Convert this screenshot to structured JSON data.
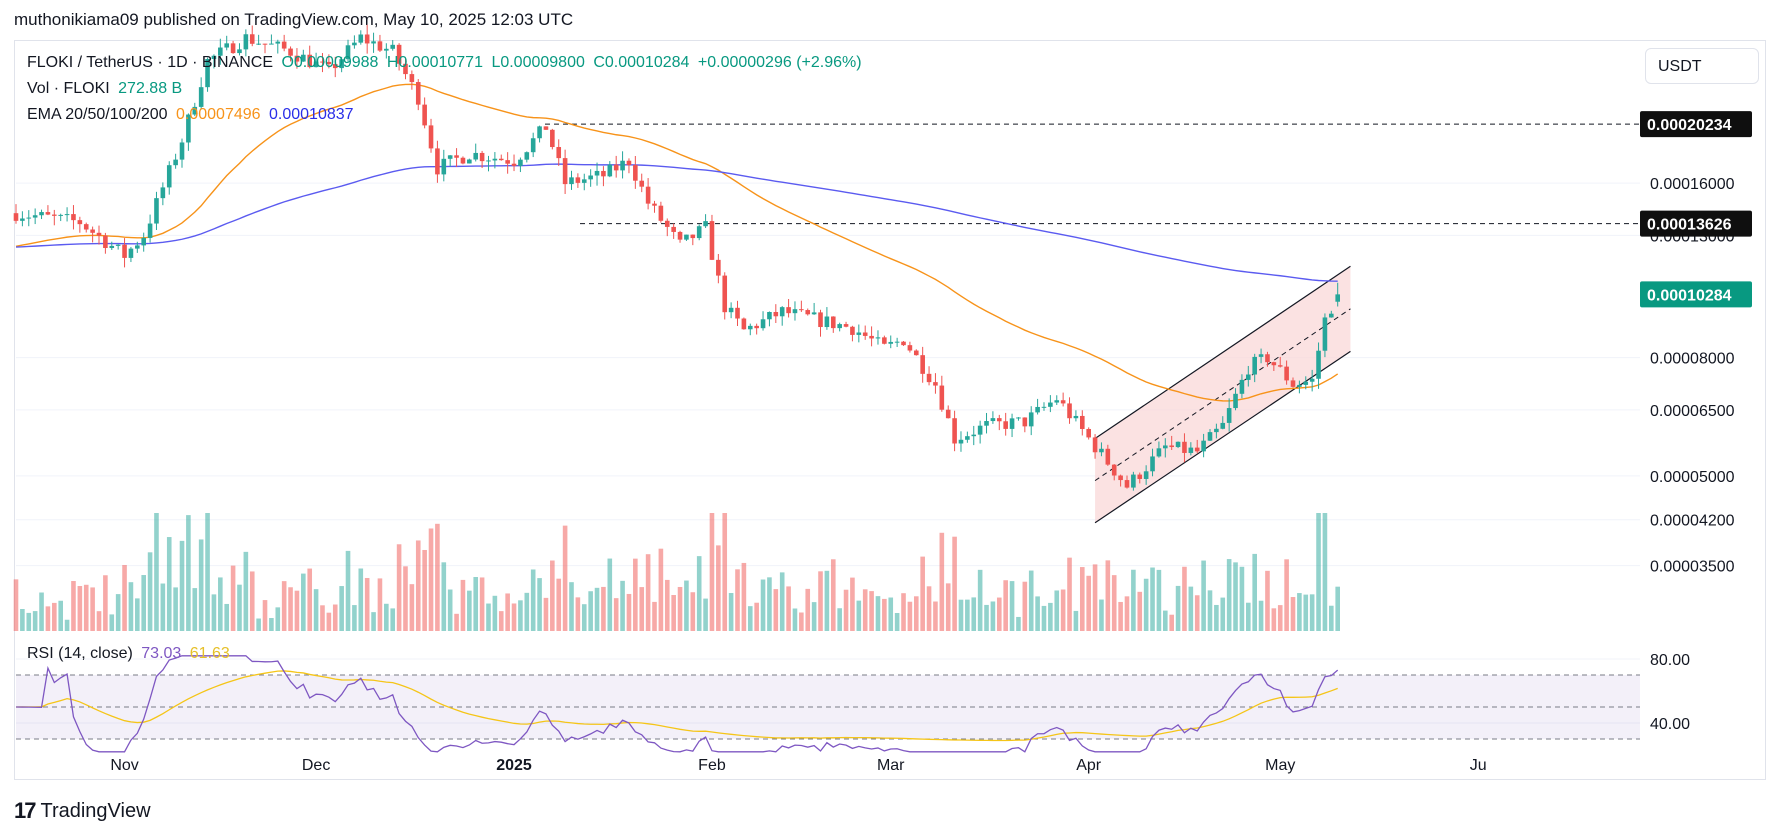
{
  "header": {
    "published": "muthonikiama09 published on TradingView.com, May 10, 2025 12:03 UTC"
  },
  "legend": {
    "symbol": "FLOKI / TetherUS · 1D · BINANCE",
    "open": "O0.00009988",
    "high": "H0.00010771",
    "low": "L0.00009800",
    "close": "C0.00010284",
    "change": "+0.00000296 (+2.96%)",
    "vol_label": "Vol · FLOKI",
    "vol_value": "272.88 B",
    "ema_label": "EMA 20/50/100/200",
    "ema_50": "0.00007496",
    "ema_200": "0.00010837",
    "rsi_label": "RSI (14, close)",
    "rsi_value": "73.03",
    "rsi_ma": "61.63"
  },
  "currency_button": "USDT",
  "footer": {
    "logo_mark": "17",
    "brand": "TradingView"
  },
  "colors": {
    "up": "#26a69a",
    "down": "#ef5350",
    "ema50": "#f7931a",
    "ema200": "#5b5bf0",
    "rsi": "#7e57c2",
    "rsi_ma": "#f5c518",
    "channel": "#f9d5d5"
  },
  "chart_data": {
    "type": "candlestick",
    "title": "FLOKI / TetherUS · 1D · BINANCE",
    "y_scale": "log",
    "y_ticks": [
      "0.00016000",
      "0.00013000",
      "0.00008000",
      "0.00006500",
      "0.00005000",
      "0.00004200",
      "0.00003500"
    ],
    "price_labels": [
      {
        "value": "0.00020234",
        "style": "dark"
      },
      {
        "value": "0.00013626",
        "style": "dark"
      },
      {
        "value": "0.00010284",
        "style": "teal"
      }
    ],
    "rsi_ticks": [
      "80.00",
      "40.00"
    ],
    "x_ticks": [
      "Nov",
      "Dec",
      "2025",
      "Feb",
      "Mar",
      "Apr",
      "May",
      "Ju"
    ],
    "horizontal_levels": [
      0.00020234,
      0.00013626
    ],
    "series": [
      {
        "name": "FLOKI/USDT",
        "start": "2024-10-15",
        "end": "2025-05-10",
        "anchor_closes": [
          [
            "2024-10-15",
            0.000142
          ],
          [
            "2024-10-25",
            0.000137
          ],
          [
            "2024-11-01",
            0.00012
          ],
          [
            "2024-11-04",
            0.00013
          ],
          [
            "2024-11-10",
            0.00019
          ],
          [
            "2024-11-14",
            0.00026
          ],
          [
            "2024-11-20",
            0.000285
          ],
          [
            "2024-11-27",
            0.00027
          ],
          [
            "2024-12-03",
            0.00025
          ],
          [
            "2024-12-08",
            0.000285
          ],
          [
            "2024-12-13",
            0.00027
          ],
          [
            "2024-12-17",
            0.000225
          ],
          [
            "2024-12-20",
            0.00017
          ],
          [
            "2024-12-25",
            0.00018
          ],
          [
            "2025-01-01",
            0.000175
          ],
          [
            "2025-01-06",
            0.0002
          ],
          [
            "2025-01-09",
            0.00016
          ],
          [
            "2025-01-15",
            0.000165
          ],
          [
            "2025-01-19",
            0.000175
          ],
          [
            "2025-01-22",
            0.000148
          ],
          [
            "2025-01-27",
            0.000125
          ],
          [
            "2025-01-31",
            0.000134
          ],
          [
            "2025-02-03",
            9.8e-05
          ],
          [
            "2025-02-06",
            8.9e-05
          ],
          [
            "2025-02-12",
            9.6e-05
          ],
          [
            "2025-02-23",
            9e-05
          ],
          [
            "2025-02-28",
            8.3e-05
          ],
          [
            "2025-03-03",
            8.6e-05
          ],
          [
            "2025-03-08",
            7.2e-05
          ],
          [
            "2025-03-11",
            5.8e-05
          ],
          [
            "2025-03-16",
            6.1e-05
          ],
          [
            "2025-03-22",
            6.2e-05
          ],
          [
            "2025-03-27",
            6.8e-05
          ],
          [
            "2025-04-01",
            5.8e-05
          ],
          [
            "2025-04-07",
            4.8e-05
          ],
          [
            "2025-04-13",
            5.6e-05
          ],
          [
            "2025-04-18",
            5.5e-05
          ],
          [
            "2025-04-22",
            6.1e-05
          ],
          [
            "2025-04-26",
            7.7e-05
          ],
          [
            "2025-04-29",
            8e-05
          ],
          [
            "2025-05-03",
            7.2e-05
          ],
          [
            "2025-05-06",
            7.3e-05
          ],
          [
            "2025-05-08",
            9.3e-05
          ],
          [
            "2025-05-10",
            0.000103
          ]
        ]
      }
    ],
    "ema": [
      {
        "name": "EMA 50",
        "value": 7.496e-05
      },
      {
        "name": "EMA 200",
        "value": 0.00010837
      }
    ],
    "channel": {
      "from": "2025-04-02",
      "to": "2025-05-12",
      "upper": [
        5.8e-05,
        0.000115
      ],
      "lower": [
        4.15e-05,
        8.2e-05
      ]
    },
    "volume": {
      "last": "272.88 B"
    },
    "rsi": {
      "last": 73.03,
      "ma_last": 61.63,
      "overbought": 70,
      "oversold": 30
    }
  }
}
